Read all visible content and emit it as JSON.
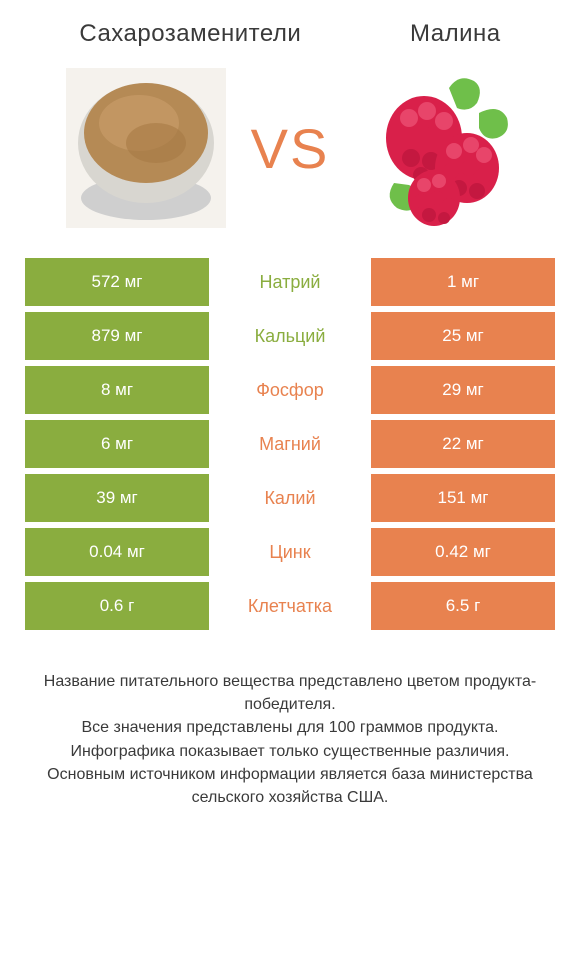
{
  "header": {
    "left_title": "Сахарозаменители",
    "right_title": "Малина",
    "vs_label": "VS"
  },
  "colors": {
    "green": "#8aad3f",
    "orange": "#e8824f",
    "text": "#3a3a3a",
    "white": "#ffffff"
  },
  "rows": [
    {
      "label": "Натрий",
      "left": "572 мг",
      "right": "1 мг",
      "winner": "left"
    },
    {
      "label": "Кальций",
      "left": "879 мг",
      "right": "25 мг",
      "winner": "left"
    },
    {
      "label": "Фосфор",
      "left": "8 мг",
      "right": "29 мг",
      "winner": "right"
    },
    {
      "label": "Магний",
      "left": "6 мг",
      "right": "22 мг",
      "winner": "right"
    },
    {
      "label": "Калий",
      "left": "39 мг",
      "right": "151 мг",
      "winner": "right"
    },
    {
      "label": "Цинк",
      "left": "0.04 мг",
      "right": "0.42 мг",
      "winner": "right"
    },
    {
      "label": "Клетчатка",
      "left": "0.6 г",
      "right": "6.5 г",
      "winner": "right"
    }
  ],
  "footer": {
    "line1": "Название питательного вещества представлено цветом продукта-победителя.",
    "line2": "Все значения представлены для 100 граммов продукта.",
    "line3": "Инфографика показывает только существенные различия.",
    "line4": "Основным источником информации является база министерства сельского хозяйства США."
  }
}
